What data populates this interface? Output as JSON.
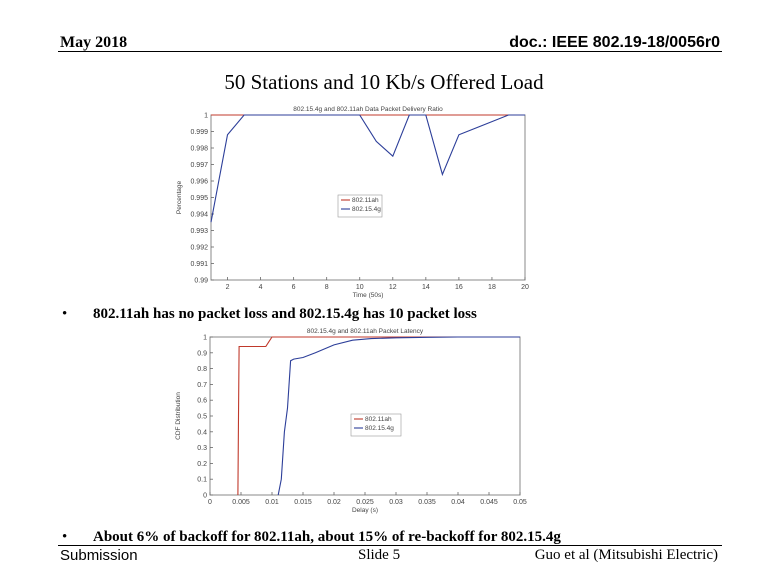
{
  "header": {
    "date": "May 2018",
    "doc_id": "doc.: IEEE 802.19-18/0056r0"
  },
  "slide_title": "50 Stations and 10 Kb/s Offered Load",
  "bullets": [
    {
      "marker": "•",
      "text": "802.11ah has no packet loss and 802.15.4g has 10 packet loss"
    },
    {
      "marker": "•",
      "text": "About 6% of backoff for 802.11ah, about 15% of re-backoff for 802.15.4g"
    }
  ],
  "footer": {
    "left": "Submission",
    "center": "Slide 5",
    "right": "Guo et al (Mitsubishi Electric)"
  },
  "chart_data": [
    {
      "type": "line",
      "title": "802.15.4g and 802.11ah Data Packet Delivery Ratio",
      "xlabel": "Time (50s)",
      "ylabel": "Percentage",
      "xlim": [
        1,
        20
      ],
      "ylim": [
        0.99,
        1.0
      ],
      "xticks": [
        "2",
        "4",
        "6",
        "8",
        "10",
        "12",
        "14",
        "16",
        "18",
        "20"
      ],
      "yticks": [
        "1",
        "0.999",
        "0.998",
        "0.997",
        "0.996",
        "0.995",
        "0.994",
        "0.993",
        "0.992",
        "0.991",
        "0.99"
      ],
      "legend_position": "center",
      "series": [
        {
          "name": "802.11ah",
          "color": "#c0392b",
          "x": [
            1,
            20
          ],
          "y": [
            1.0,
            1.0
          ]
        },
        {
          "name": "802.15.4g",
          "color": "#2c3e99",
          "x": [
            1,
            2,
            3,
            10,
            11,
            12,
            13,
            14,
            15,
            16,
            19,
            20
          ],
          "y": [
            0.9935,
            0.9988,
            1.0,
            1.0,
            0.9984,
            0.9975,
            1.0,
            1.0,
            0.9964,
            0.9988,
            1.0,
            1.0
          ]
        }
      ]
    },
    {
      "type": "line",
      "title": "802.15.4g and 802.11ah Packet Latency",
      "xlabel": "Delay (s)",
      "ylabel": "CDF Distribution",
      "xlim": [
        0,
        0.05
      ],
      "ylim": [
        0,
        1.0
      ],
      "xticks": [
        "0",
        "0.005",
        "0.01",
        "0.015",
        "0.02",
        "0.025",
        "0.03",
        "0.035",
        "0.04",
        "0.045",
        "0.05"
      ],
      "yticks": [
        "1",
        "0.9",
        "0.8",
        "0.7",
        "0.6",
        "0.5",
        "0.4",
        "0.3",
        "0.2",
        "0.1",
        "0"
      ],
      "legend_position": "center-right",
      "series": [
        {
          "name": "802.11ah",
          "color": "#c0392b",
          "x": [
            0.0045,
            0.0046,
            0.0047,
            0.009,
            0.0095,
            0.01,
            0.05
          ],
          "y": [
            0,
            0.5,
            0.94,
            0.94,
            0.97,
            1.0,
            1.0
          ]
        },
        {
          "name": "802.15.4g",
          "color": "#2c3e99",
          "x": [
            0.011,
            0.0115,
            0.012,
            0.0125,
            0.013,
            0.0135,
            0.015,
            0.017,
            0.02,
            0.023,
            0.026,
            0.03,
            0.035,
            0.04,
            0.05
          ],
          "y": [
            0,
            0.1,
            0.4,
            0.55,
            0.85,
            0.86,
            0.87,
            0.9,
            0.95,
            0.98,
            0.99,
            0.995,
            0.998,
            1.0,
            1.0
          ]
        }
      ]
    }
  ]
}
